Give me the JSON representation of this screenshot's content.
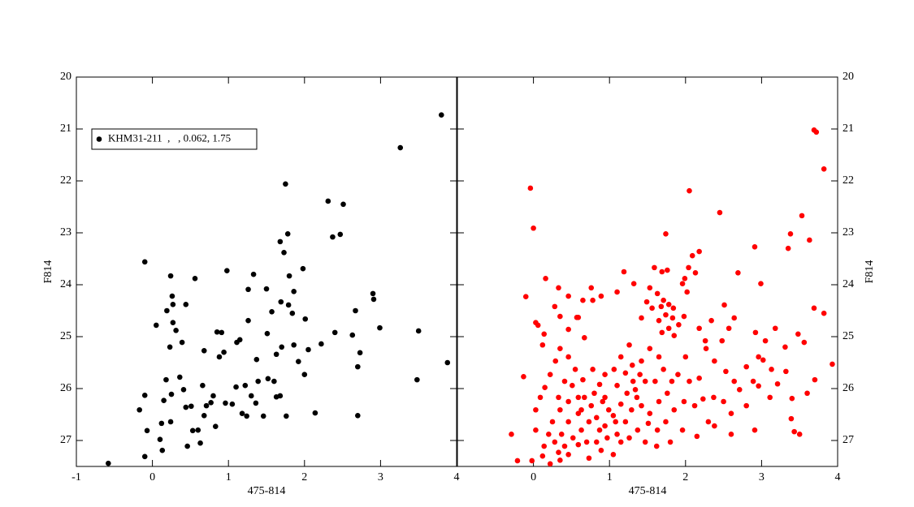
{
  "chart_data": [
    {
      "type": "scatter",
      "xlabel": "475-814",
      "ylabel": "F814",
      "yaxis_side": "left",
      "xlim": [
        -1,
        4
      ],
      "ylim": [
        20,
        27.5
      ],
      "y_inverted": true,
      "xticks": [
        -1,
        0,
        1,
        2,
        3,
        4
      ],
      "yticks": [
        20,
        21,
        22,
        23,
        24,
        25,
        26,
        27
      ],
      "legend": "upper left",
      "series": [
        {
          "name": "KHM31-211  ,   , 0.062, 1.75",
          "color": "#000000",
          "x": [
            -0.58,
            -0.1,
            -0.17,
            -0.07,
            -0.1,
            -0.1,
            0.05,
            0.13,
            0.1,
            0.12,
            0.15,
            0.18,
            0.24,
            0.23,
            0.19,
            0.26,
            0.27,
            0.24,
            0.25,
            0.27,
            0.31,
            0.36,
            0.39,
            0.41,
            0.44,
            0.46,
            0.44,
            0.51,
            0.53,
            0.56,
            0.6,
            0.63,
            0.66,
            0.68,
            0.68,
            0.71,
            0.77,
            0.8,
            0.83,
            0.85,
            0.88,
            0.91,
            0.94,
            0.98,
            0.96,
            1.05,
            1.1,
            1.11,
            1.15,
            1.18,
            1.22,
            1.24,
            1.26,
            1.26,
            1.3,
            1.33,
            1.36,
            1.37,
            1.39,
            1.46,
            1.5,
            1.51,
            1.52,
            1.57,
            1.6,
            1.63,
            1.63,
            1.68,
            1.69,
            1.7,
            1.68,
            1.73,
            1.75,
            1.76,
            1.78,
            1.79,
            1.8,
            1.84,
            1.86,
            1.86,
            1.92,
            1.98,
            2.0,
            2.01,
            2.05,
            2.14,
            2.22,
            2.31,
            2.37,
            2.4,
            2.47,
            2.51,
            2.63,
            2.67,
            2.7,
            2.73,
            2.7,
            2.9,
            2.91,
            2.99,
            3.26,
            3.5,
            3.48,
            3.8,
            3.88
          ],
          "y": [
            27.44,
            27.31,
            26.41,
            26.81,
            26.13,
            23.56,
            24.78,
            27.19,
            26.98,
            26.67,
            26.23,
            25.83,
            23.83,
            25.2,
            24.5,
            24.22,
            24.38,
            26.64,
            26.11,
            24.73,
            24.88,
            25.78,
            25.11,
            26.02,
            24.38,
            27.11,
            26.36,
            26.34,
            26.81,
            23.88,
            26.8,
            27.05,
            25.94,
            25.27,
            26.52,
            26.33,
            26.27,
            26.14,
            26.73,
            24.91,
            25.39,
            24.92,
            25.3,
            23.73,
            26.28,
            26.3,
            25.97,
            25.11,
            25.06,
            26.48,
            25.94,
            26.53,
            24.09,
            24.69,
            26.14,
            23.8,
            26.28,
            25.44,
            25.86,
            26.53,
            24.08,
            24.94,
            25.81,
            24.52,
            25.86,
            25.34,
            26.16,
            23.17,
            24.33,
            25.2,
            26.14,
            23.38,
            22.06,
            26.53,
            23.02,
            24.39,
            23.83,
            24.55,
            24.13,
            25.16,
            25.48,
            23.69,
            25.73,
            24.66,
            25.25,
            26.47,
            25.14,
            22.39,
            23.08,
            24.92,
            23.03,
            22.45,
            24.97,
            24.5,
            25.58,
            25.31,
            26.52,
            24.17,
            24.28,
            24.83,
            21.36,
            24.89,
            25.83,
            20.73,
            25.5
          ]
        }
      ]
    },
    {
      "type": "scatter",
      "xlabel": "475-814",
      "ylabel": "F814",
      "yaxis_side": "right",
      "xlim": [
        -1,
        4
      ],
      "ylim": [
        20,
        27.5
      ],
      "y_inverted": true,
      "xticks": [
        0,
        1,
        2,
        3,
        4
      ],
      "yticks": [
        20,
        21,
        22,
        23,
        24,
        25,
        26,
        27
      ],
      "series": [
        {
          "color": "#ff0000",
          "x": [
            -0.04,
            0.0,
            -0.13,
            -0.1,
            -0.29,
            -0.21,
            -0.02,
            0.03,
            0.06,
            0.16,
            2.05,
            2.45,
            1.74,
            3.69,
            3.72,
            3.82,
            3.53,
            3.38,
            3.63,
            2.91,
            3.35,
            3.69,
            3.82,
            2.99,
            2.69,
            3.48,
            3.31,
            3.93,
            3.56,
            3.7,
            3.6,
            3.4,
            3.39,
            3.43,
            3.5,
            1.59,
            1.69,
            1.76,
            1.53,
            1.63,
            1.71,
            1.78,
            1.68,
            1.84,
            1.74,
            1.83,
            1.65,
            1.91,
            1.78,
            1.69,
            1.85,
            2.02,
            1.96,
            2.04,
            2.13,
            2.18,
            2.09,
            1.99,
            1.49,
            1.42,
            1.56,
            0.25,
            0.35,
            0.46,
            0.59,
            0.67,
            0.76,
            0.83,
            0.91,
            0.99,
            1.08,
            1.15,
            1.23,
            1.31,
            1.4,
            1.47,
            1.36,
            1.29,
            1.21,
            1.1,
            0.97,
            0.87,
            0.73,
            0.63,
            0.52,
            0.41,
            0.33,
            0.46,
            0.28,
            0.2,
            0.14,
            0.12,
            0.59,
            0.7,
            0.83,
            0.94,
            1.05,
            1.15,
            1.26,
            1.37,
            1.51,
            1.63,
            1.74,
            1.85,
            1.98,
            2.12,
            2.23,
            2.37,
            2.5,
            2.6,
            2.3,
            2.15,
            1.96,
            1.8,
            1.62,
            1.47,
            2.05,
            2.18,
            1.9,
            1.82,
            2.0,
            2.27,
            2.38,
            2.48,
            2.53,
            2.64,
            2.71,
            2.8,
            2.89,
            2.96,
            3.05,
            3.13,
            2.92,
            2.64,
            2.18,
            2.26,
            2.34,
            1.65,
            1.53,
            1.42,
            1.26,
            1.15,
            1.06,
            0.94,
            0.87,
            0.78,
            0.65,
            0.55,
            0.46,
            0.35,
            0.29,
            0.22,
            0.15,
            0.09,
            0.03,
            0.46,
            0.57,
            0.65,
            0.76,
            0.89,
            0.67,
            0.35,
            0.28,
            0.14,
            0.12,
            0.51,
            0.41,
            0.33,
            1.1,
            1.21,
            1.3,
            1.34,
            1.42,
            1.53,
            1.65,
            1.76,
            1.6,
            1.71,
            0.94,
            0.8,
            0.59,
            0.46,
            0.37,
            0.63,
            1.05,
            0.89,
            0.73,
            0.35,
            0.22,
            0.03,
            2.38,
            2.6,
            2.91,
            3.11,
            2.8,
            2.96,
            3.21,
            3.32,
            3.02,
            3.18,
            2.51,
            2.57,
            1.98,
            1.1,
            1.19,
            1.32,
            0.78,
            0.46,
            0.33,
            0.59
          ],
          "y": [
            22.14,
            22.91,
            25.77,
            24.23,
            26.88,
            27.39,
            27.39,
            24.73,
            24.78,
            23.88,
            22.19,
            22.61,
            23.02,
            21.02,
            21.06,
            21.77,
            22.67,
            23.02,
            23.14,
            23.27,
            23.3,
            24.45,
            24.55,
            23.98,
            23.77,
            24.95,
            25.2,
            25.53,
            25.11,
            25.83,
            26.09,
            26.19,
            26.58,
            26.83,
            26.88,
            23.67,
            23.75,
            23.72,
            24.06,
            24.17,
            24.3,
            24.38,
            24.42,
            24.45,
            24.58,
            24.64,
            24.69,
            24.77,
            24.84,
            24.92,
            24.98,
            24.14,
            23.98,
            23.67,
            23.77,
            23.36,
            23.44,
            23.88,
            24.33,
            24.64,
            24.45,
            26.64,
            26.41,
            26.25,
            26.48,
            26.17,
            26.33,
            26.56,
            26.25,
            26.41,
            26.64,
            26.3,
            26.09,
            25.86,
            25.73,
            25.86,
            26.17,
            26.41,
            26.64,
            26.88,
            26.95,
            26.8,
            26.64,
            26.8,
            26.95,
            27.11,
            27.23,
            27.27,
            27.03,
            26.88,
            27.11,
            27.3,
            27.08,
            27.03,
            27.03,
            26.72,
            26.52,
            27.03,
            26.95,
            26.8,
            26.67,
            26.8,
            26.64,
            26.41,
            26.25,
            26.33,
            26.2,
            26.17,
            26.25,
            26.48,
            26.64,
            26.92,
            26.8,
            27.03,
            27.11,
            27.03,
            25.86,
            25.8,
            25.73,
            25.86,
            25.39,
            25.23,
            25.47,
            25.08,
            25.67,
            25.86,
            26.02,
            25.58,
            25.86,
            25.39,
            25.08,
            25.63,
            24.92,
            24.64,
            24.84,
            25.08,
            24.69,
            25.39,
            25.23,
            25.47,
            25.16,
            25.39,
            25.63,
            25.73,
            25.92,
            25.63,
            25.83,
            25.63,
            25.39,
            25.23,
            25.47,
            25.73,
            25.98,
            26.17,
            26.41,
            24.86,
            24.63,
            24.3,
            24.06,
            24.22,
            25.02,
            24.61,
            24.42,
            24.95,
            25.16,
            25.94,
            25.86,
            26.17,
            25.94,
            25.7,
            25.55,
            26.02,
            26.33,
            26.48,
            26.25,
            26.09,
            25.86,
            25.63,
            26.17,
            26.09,
            26.17,
            26.64,
            26.88,
            26.41,
            27.27,
            27.19,
            27.34,
            27.38,
            27.45,
            26.8,
            26.72,
            26.88,
            26.8,
            26.17,
            26.33,
            25.95,
            25.91,
            25.67,
            25.45,
            24.84,
            24.39,
            24.84,
            24.61,
            24.14,
            23.75,
            23.98,
            24.3,
            24.22,
            24.06,
            24.63
          ]
        }
      ]
    }
  ]
}
